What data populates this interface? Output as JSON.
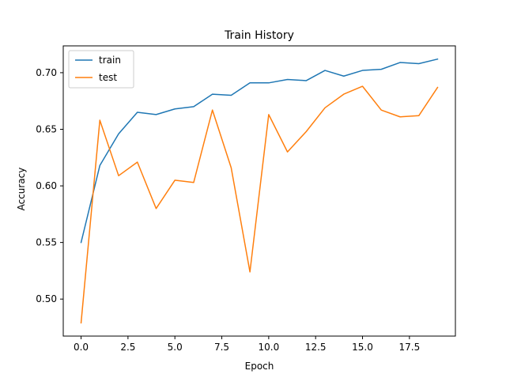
{
  "chart_data": {
    "type": "line",
    "title": "Train History",
    "xlabel": "Epoch",
    "ylabel": "Accuracy",
    "x": [
      0,
      1,
      2,
      3,
      4,
      5,
      6,
      7,
      8,
      9,
      10,
      11,
      12,
      13,
      14,
      15,
      16,
      17,
      18,
      19
    ],
    "series": [
      {
        "name": "train",
        "color": "#1f77b4",
        "values": [
          0.55,
          0.618,
          0.646,
          0.665,
          0.663,
          0.668,
          0.67,
          0.681,
          0.68,
          0.691,
          0.691,
          0.694,
          0.693,
          0.702,
          0.697,
          0.702,
          0.703,
          0.709,
          0.708,
          0.712
        ]
      },
      {
        "name": "test",
        "color": "#ff7f0e",
        "values": [
          0.479,
          0.658,
          0.609,
          0.621,
          0.58,
          0.605,
          0.603,
          0.667,
          0.616,
          0.524,
          0.663,
          0.63,
          0.648,
          0.669,
          0.681,
          0.688,
          0.667,
          0.661,
          0.662,
          0.687
        ]
      }
    ],
    "xlim": [
      -0.95,
      19.95
    ],
    "ylim": [
      0.4673,
      0.7237
    ],
    "x_ticks": [
      0.0,
      2.5,
      5.0,
      7.5,
      10.0,
      12.5,
      15.0,
      17.5
    ],
    "x_tick_labels": [
      "0.0",
      "2.5",
      "5.0",
      "7.5",
      "10.0",
      "12.5",
      "15.0",
      "17.5"
    ],
    "y_ticks": [
      0.5,
      0.55,
      0.6,
      0.65,
      0.7
    ],
    "y_tick_labels": [
      "0.50",
      "0.55",
      "0.60",
      "0.65",
      "0.70"
    ],
    "grid": false,
    "legend_position": "upper-left"
  }
}
